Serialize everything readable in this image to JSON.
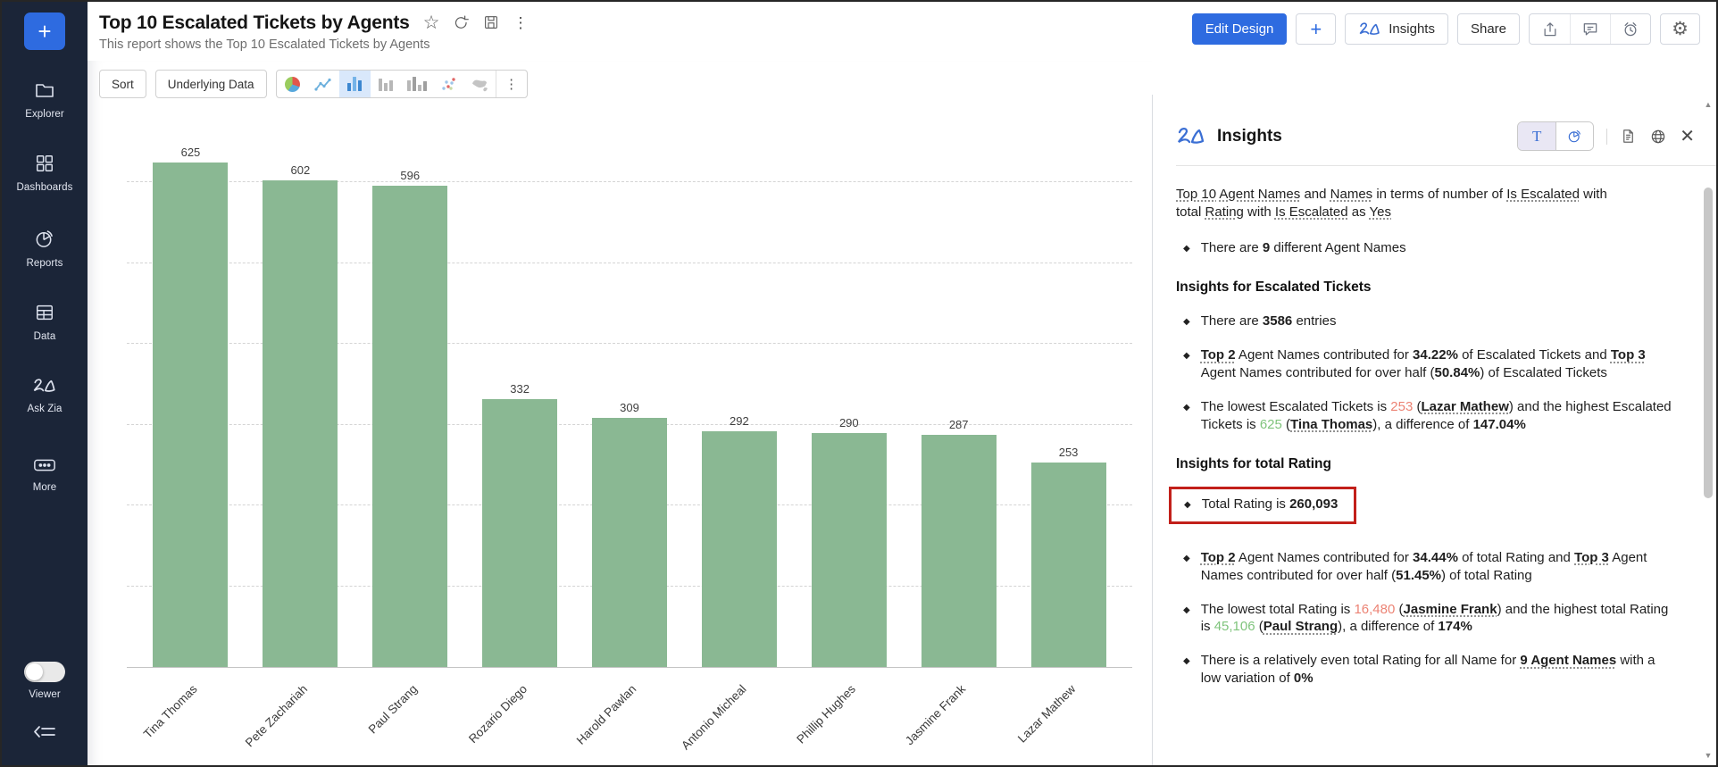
{
  "colors": {
    "accent_blue": "#2e6be0",
    "sidebar_bg": "#1b2538",
    "bar_green": "#8ab893",
    "annotation_red": "#c2201a",
    "lowest_value_red": "#ec8374",
    "highest_value_green": "#7fc47c"
  },
  "sidebar": {
    "add_button": "+",
    "items": [
      {
        "id": "explorer",
        "label": "Explorer",
        "icon": "folder-icon"
      },
      {
        "id": "dashboards",
        "label": "Dashboards",
        "icon": "dashboards-grid-icon"
      },
      {
        "id": "reports",
        "label": "Reports",
        "icon": "report-pie-icon"
      },
      {
        "id": "data",
        "label": "Data",
        "icon": "data-table-icon"
      },
      {
        "id": "ask-zia",
        "label": "Ask Zia",
        "icon": "zia-icon"
      },
      {
        "id": "more",
        "label": "More",
        "icon": "more-ellipsis-icon"
      }
    ],
    "viewer_toggle": {
      "label": "Viewer",
      "state": "off"
    }
  },
  "header": {
    "title": "Top 10 Escalated Tickets by Agents",
    "subtitle": "This report shows the Top 10 Escalated Tickets by Agents",
    "title_icons": [
      "star-icon",
      "refresh-icon",
      "save-icon",
      "kebab-icon"
    ]
  },
  "top_actions": {
    "edit_design": "Edit Design",
    "add": "+",
    "insights": "Insights",
    "share": "Share",
    "icon_buttons": [
      "export-icon",
      "comment-icon",
      "reminder-icon"
    ],
    "settings_icon": "gear-icon"
  },
  "toolbar": {
    "sort": "Sort",
    "underlying_data": "Underlying Data",
    "chart_types": [
      "pie-chart-icon",
      "line-chart-icon",
      "bar-chart-icon",
      "bar-chart-alt-icon",
      "grouped-bar-icon",
      "scatter-plot-icon",
      "map-chart-icon",
      "more-options-icon"
    ],
    "selected_chart_type": "bar-chart-icon"
  },
  "chart_data": {
    "type": "bar",
    "categories": [
      "Tina Thomas",
      "Pete Zachariah",
      "Paul Strang",
      "Rozario Diego",
      "Harold Pawlan",
      "Antonio Micheal",
      "Phillip Hughes",
      "Jasmine Frank",
      "Lazar Mathew"
    ],
    "values": [
      625,
      602,
      596,
      332,
      309,
      292,
      290,
      287,
      253
    ],
    "value_labels_shown": true,
    "bar_color": "#8ab893",
    "ylim": [
      0,
      660
    ],
    "gridline_step": 100,
    "gridline_style": "dashed",
    "y_axis_labels_shown": false,
    "xlabel_rotation_deg": -45
  },
  "insights_panel": {
    "title": "Insights",
    "view_toggle": {
      "options": [
        "text-view",
        "chart-view"
      ],
      "selected": "text-view"
    },
    "tools": [
      "summary-document-icon",
      "globe-icon",
      "close-icon"
    ],
    "blocks": [
      {
        "type": "intro",
        "segments": [
          {
            "t": "Top 10",
            "u": 1
          },
          {
            "t": " "
          },
          {
            "t": "Agent Names",
            "u": 1
          },
          {
            "t": " and "
          },
          {
            "t": "Names",
            "u": 1
          },
          {
            "t": " in terms of number of "
          },
          {
            "t": "Is Escalated",
            "u": 1
          },
          {
            "t": " with total "
          },
          {
            "t": "Rating",
            "u": 1
          },
          {
            "t": " with "
          },
          {
            "t": "Is Escalated",
            "u": 1
          },
          {
            "t": " as "
          },
          {
            "t": "Yes",
            "u": 1
          }
        ]
      },
      {
        "type": "bullet",
        "segments": [
          {
            "t": "There are "
          },
          {
            "t": "9",
            "b": 1
          },
          {
            "t": " different Agent Names"
          }
        ]
      },
      {
        "type": "heading",
        "text": "Insights for Escalated Tickets"
      },
      {
        "type": "bullet",
        "segments": [
          {
            "t": "There are "
          },
          {
            "t": "3586",
            "b": 1
          },
          {
            "t": " entries"
          }
        ]
      },
      {
        "type": "bullet",
        "segments": [
          {
            "t": "Top 2",
            "b": 1,
            "u": 1
          },
          {
            "t": " Agent Names contributed for "
          },
          {
            "t": "34.22%",
            "b": 1
          },
          {
            "t": " of Escalated Tickets and "
          },
          {
            "t": "Top 3",
            "b": 1,
            "u": 1
          },
          {
            "t": " Agent Names contributed for over half ("
          },
          {
            "t": "50.84%",
            "b": 1
          },
          {
            "t": ") of Escalated Tickets"
          }
        ]
      },
      {
        "type": "bullet",
        "segments": [
          {
            "t": "The lowest Escalated Tickets is "
          },
          {
            "t": "253",
            "c": "neg"
          },
          {
            "t": " ("
          },
          {
            "t": "Lazar Mathew",
            "b": 1,
            "u": 1
          },
          {
            "t": ") and the highest Escalated Tickets is "
          },
          {
            "t": "625",
            "c": "pos"
          },
          {
            "t": " ("
          },
          {
            "t": "Tina Thomas",
            "b": 1,
            "u": 1
          },
          {
            "t": "), a difference of "
          },
          {
            "t": "147.04%",
            "b": 1
          }
        ]
      },
      {
        "type": "heading",
        "text": "Insights for total Rating"
      },
      {
        "type": "bullet",
        "boxed": true,
        "segments": [
          {
            "t": "Total Rating is "
          },
          {
            "t": "260,093",
            "b": 1
          }
        ]
      },
      {
        "type": "bullet",
        "segments": [
          {
            "t": "Top 2",
            "b": 1,
            "u": 1
          },
          {
            "t": " Agent Names contributed for "
          },
          {
            "t": "34.44%",
            "b": 1
          },
          {
            "t": " of total Rating and "
          },
          {
            "t": "Top 3",
            "b": 1,
            "u": 1
          },
          {
            "t": " Agent Names contributed for over half ("
          },
          {
            "t": "51.45%",
            "b": 1
          },
          {
            "t": ") of total Rating"
          }
        ]
      },
      {
        "type": "bullet",
        "segments": [
          {
            "t": "The lowest total Rating is "
          },
          {
            "t": "16,480",
            "c": "neg"
          },
          {
            "t": " ("
          },
          {
            "t": "Jasmine Frank",
            "b": 1,
            "u": 1
          },
          {
            "t": ") and the highest total Rating is "
          },
          {
            "t": "45,106",
            "c": "pos"
          },
          {
            "t": " ("
          },
          {
            "t": "Paul Strang",
            "b": 1,
            "u": 1
          },
          {
            "t": "), a difference of "
          },
          {
            "t": "174%",
            "b": 1
          }
        ]
      },
      {
        "type": "bullet",
        "segments": [
          {
            "t": "There is a relatively even total Rating for all Name for "
          },
          {
            "t": "9 Agent Names",
            "b": 1,
            "u": 1
          },
          {
            "t": " with a low variation of "
          },
          {
            "t": "0%",
            "b": 1
          }
        ]
      }
    ]
  }
}
